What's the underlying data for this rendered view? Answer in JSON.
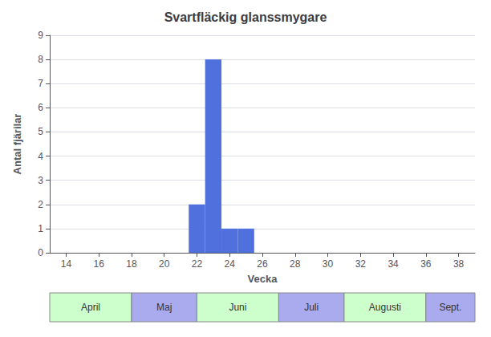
{
  "chart_data": {
    "type": "bar",
    "title": "Svartfläckig glanssmygare",
    "xlabel": "Vecka",
    "ylabel": "Antal fjärilar",
    "x": [
      22,
      23,
      24,
      25
    ],
    "values": [
      2,
      8,
      1,
      1
    ],
    "xlim": [
      13,
      39
    ],
    "xticks": [
      14,
      16,
      18,
      20,
      22,
      24,
      26,
      28,
      30,
      32,
      34,
      36,
      38
    ],
    "ylim": [
      0,
      9
    ],
    "yticks": [
      0,
      1,
      2,
      3,
      4,
      5,
      6,
      7,
      8,
      9
    ],
    "grid": true,
    "month_bands": [
      {
        "label": "April",
        "start": 13,
        "end": 18,
        "color": "#ccffcc"
      },
      {
        "label": "Maj",
        "start": 18,
        "end": 22,
        "color": "#aaaaee"
      },
      {
        "label": "Juni",
        "start": 22,
        "end": 27,
        "color": "#ccffcc"
      },
      {
        "label": "Juli",
        "start": 27,
        "end": 31,
        "color": "#aaaaee"
      },
      {
        "label": "Augusti",
        "start": 31,
        "end": 36,
        "color": "#ccffcc"
      },
      {
        "label": "Sept.",
        "start": 36,
        "end": 39,
        "color": "#aaaaee"
      }
    ]
  }
}
